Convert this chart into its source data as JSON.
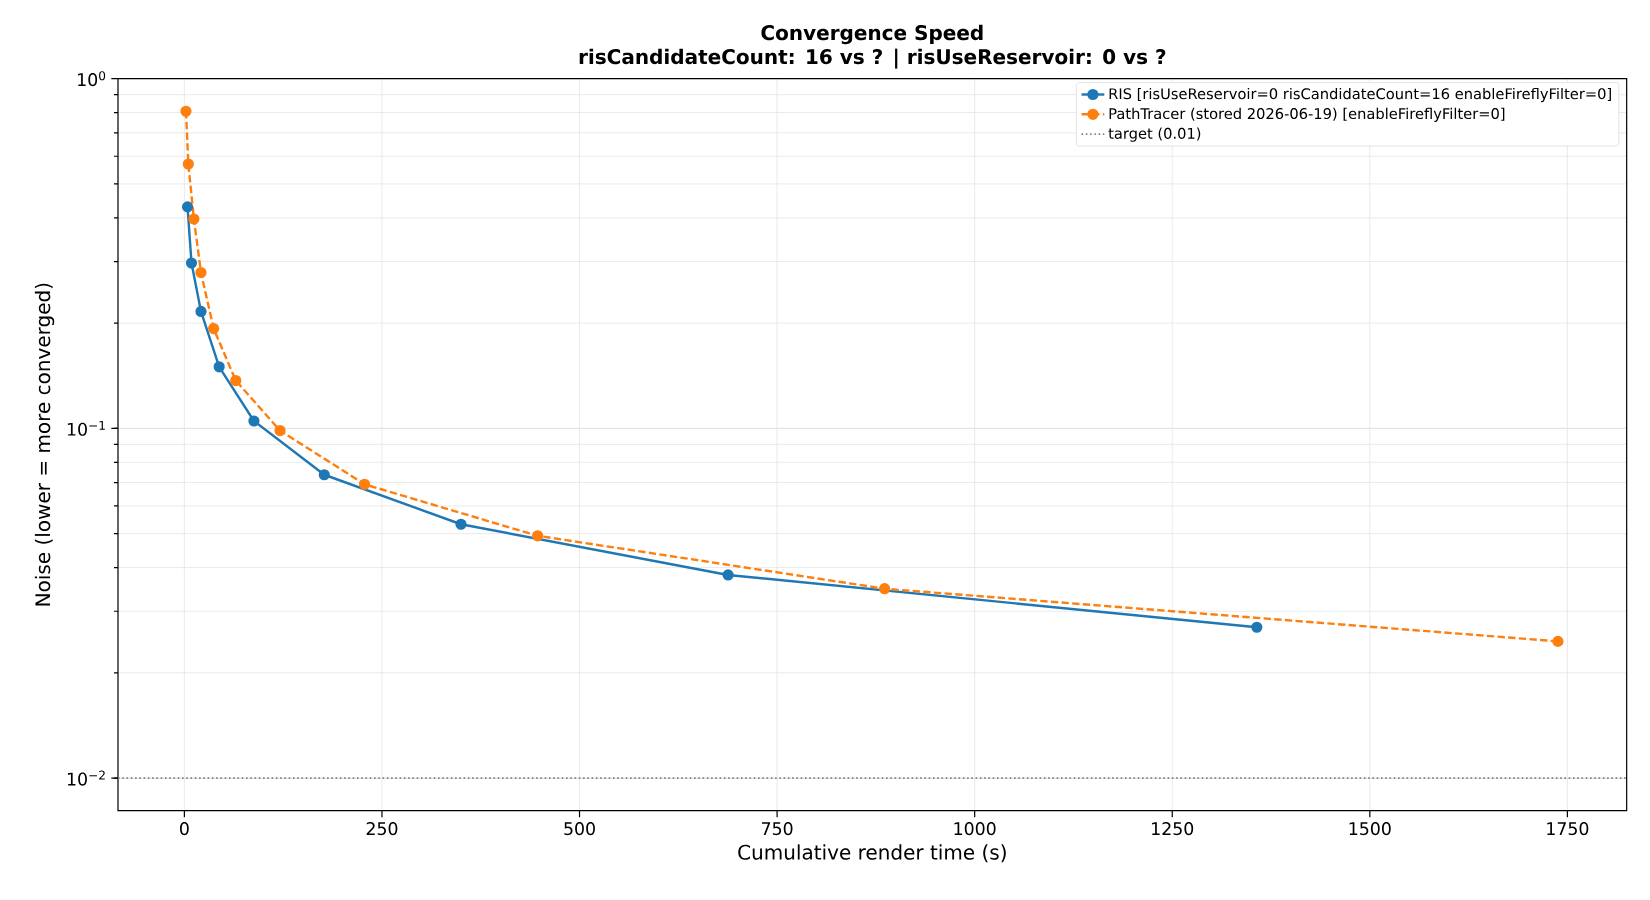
{
  "chart_data": {
    "type": "line",
    "title": "Convergence Speed",
    "subtitle": "risCandidateCount: 16 vs ?  |  risUseReservoir: 0 vs ?",
    "xlabel": "Cumulative render time  (s)",
    "ylabel": "Noise  (lower = more converged)",
    "series": [
      {
        "name": "RIS  [risUseReservoir=0 risCandidateCount=16 enableFireflyFilter=0]",
        "color": "#1f77b4",
        "line_style": "solid",
        "x": [
          4,
          9,
          21,
          44,
          88,
          177,
          350,
          688,
          1357
        ],
        "values": [
          0.43,
          0.297,
          0.216,
          0.15,
          0.105,
          0.0737,
          0.0532,
          0.0381,
          0.027
        ]
      },
      {
        "name": "PathTracer (stored 2026-06-19)  [enableFireflyFilter=0]",
        "color": "#ff7f0e",
        "line_style": "dashed",
        "x": [
          2,
          5,
          12,
          21,
          37,
          65,
          121,
          228,
          447,
          886,
          1738
        ],
        "values": [
          0.807,
          0.57,
          0.397,
          0.279,
          0.193,
          0.137,
          0.0986,
          0.0692,
          0.0493,
          0.0348,
          0.0246
        ]
      }
    ],
    "ref_lines": [
      {
        "axis": "y",
        "value": 0.01,
        "label": "target  (0.01)",
        "color": "#808080",
        "line_style": "dotted"
      }
    ],
    "xlim": [
      -84,
      1825
    ],
    "ylim": [
      0.00807,
      1
    ],
    "xticks": [
      0,
      250,
      500,
      750,
      1000,
      1250,
      1500,
      1750
    ],
    "yticks": [
      {
        "value": 0.01,
        "label": "10$^{−2}$"
      },
      {
        "value": 0.1,
        "label": "10$^{−1}$"
      },
      {
        "value": 1,
        "label": "10$^{0}$"
      }
    ],
    "log": "y",
    "grid": true,
    "legend": "top right",
    "marker": "circle"
  }
}
